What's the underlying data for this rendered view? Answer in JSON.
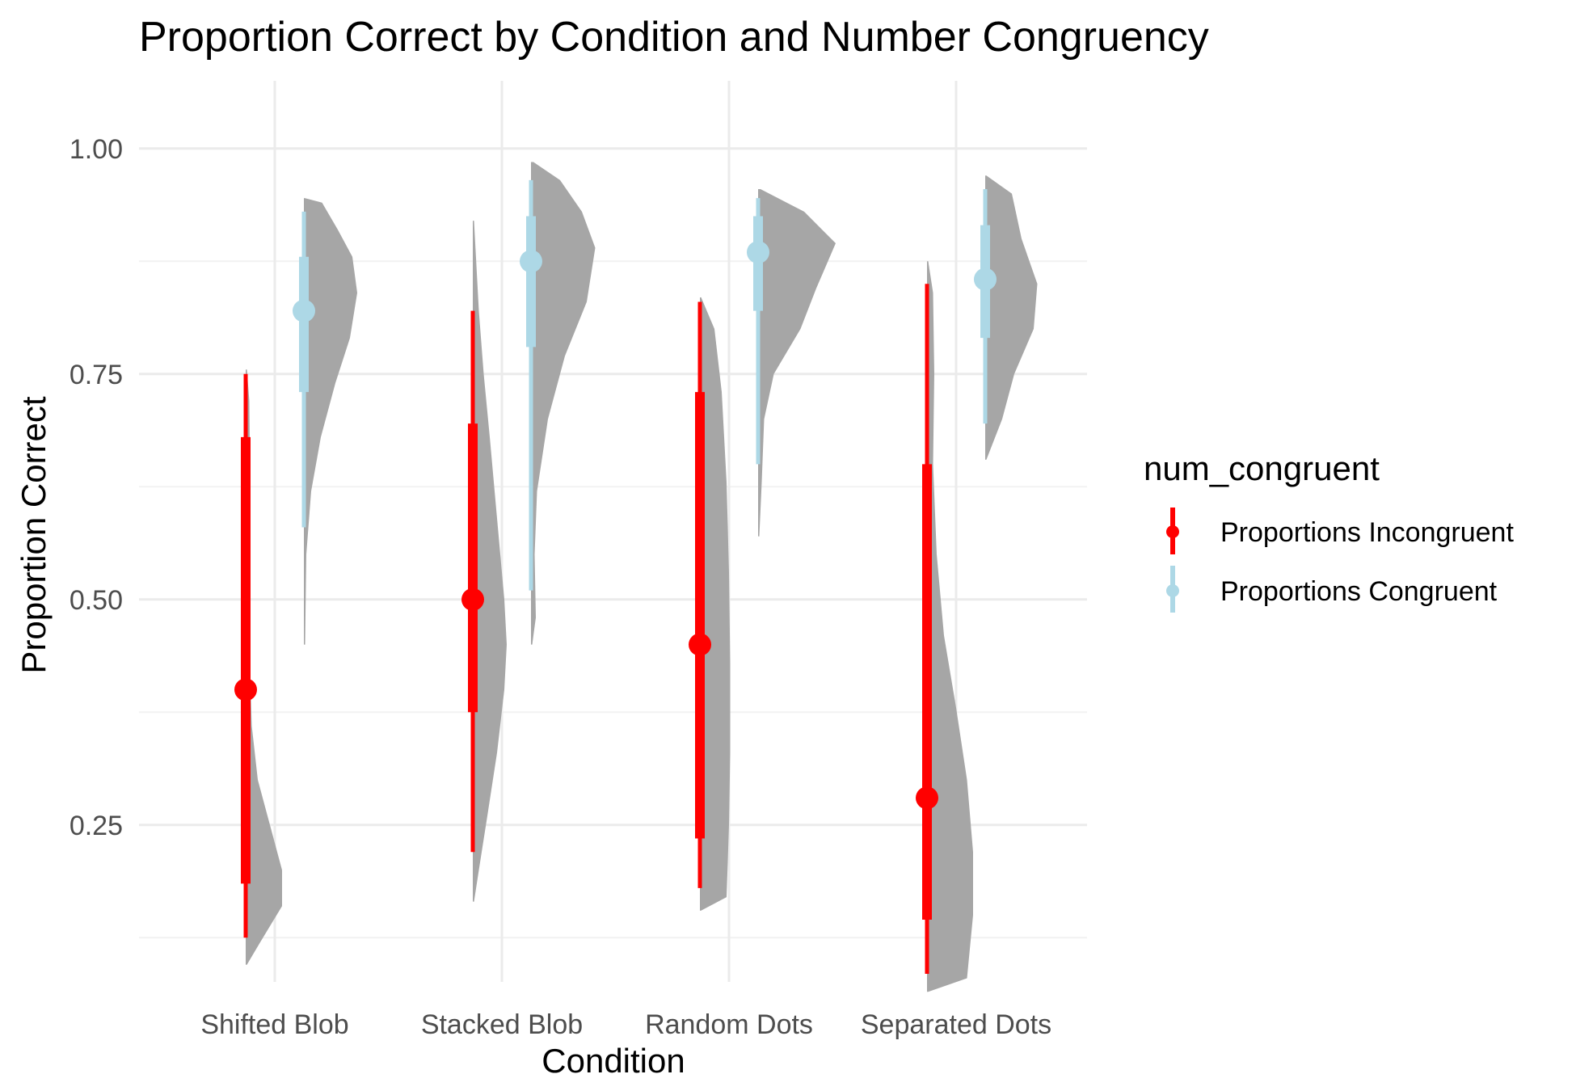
{
  "chart_data": {
    "type": "raincloud",
    "title": "Proportion Correct by Condition and Number Congruency",
    "xlabel": "Condition",
    "ylabel": "Proportion Correct",
    "ylim": [
      0.05,
      1.06
    ],
    "yticks": [
      0.25,
      0.5,
      0.75,
      1.0
    ],
    "ytick_labels": [
      "0.25",
      "0.50",
      "0.75",
      "1.00"
    ],
    "grid": true,
    "categories": [
      "Shifted Blob",
      "Stacked Blob",
      "Random Dots",
      "Separated Dots"
    ],
    "legend": {
      "title": "num_congruent",
      "placement": "right"
    },
    "density_color": "#a6a6a6",
    "series": [
      {
        "name": "Proportions Incongruent",
        "color": "#ff0000",
        "points": [
          {
            "category": "Shifted Blob",
            "median": 0.4,
            "q_inner": [
              0.185,
              0.68
            ],
            "q_outer": [
              0.125,
              0.75
            ]
          },
          {
            "category": "Stacked Blob",
            "median": 0.5,
            "q_inner": [
              0.375,
              0.695
            ],
            "q_outer": [
              0.22,
              0.82
            ]
          },
          {
            "category": "Random Dots",
            "median": 0.45,
            "q_inner": [
              0.235,
              0.73
            ],
            "q_outer": [
              0.18,
              0.83
            ]
          },
          {
            "category": "Separated Dots",
            "median": 0.28,
            "q_inner": [
              0.145,
              0.65
            ],
            "q_outer": [
              0.085,
              0.85
            ]
          }
        ],
        "densities": [
          {
            "category": "Shifted Blob",
            "profile": [
              [
                0.095,
                0.01
              ],
              [
                0.12,
                0.12
              ],
              [
                0.16,
                0.3
              ],
              [
                0.2,
                0.3
              ],
              [
                0.25,
                0.2
              ],
              [
                0.3,
                0.1
              ],
              [
                0.36,
                0.05
              ],
              [
                0.45,
                0.03
              ],
              [
                0.55,
                0.03
              ],
              [
                0.65,
                0.035
              ],
              [
                0.72,
                0.03
              ],
              [
                0.755,
                0.01
              ]
            ]
          },
          {
            "category": "Stacked Blob",
            "profile": [
              [
                0.165,
                0.01
              ],
              [
                0.2,
                0.05
              ],
              [
                0.26,
                0.12
              ],
              [
                0.33,
                0.2
              ],
              [
                0.4,
                0.26
              ],
              [
                0.45,
                0.28
              ],
              [
                0.5,
                0.26
              ],
              [
                0.56,
                0.22
              ],
              [
                0.62,
                0.18
              ],
              [
                0.68,
                0.14
              ],
              [
                0.75,
                0.09
              ],
              [
                0.82,
                0.05
              ],
              [
                0.92,
                0.01
              ]
            ]
          },
          {
            "category": "Random Dots",
            "profile": [
              [
                0.155,
                0.01
              ],
              [
                0.17,
                0.22
              ],
              [
                0.25,
                0.24
              ],
              [
                0.33,
                0.25
              ],
              [
                0.43,
                0.25
              ],
              [
                0.53,
                0.24
              ],
              [
                0.63,
                0.22
              ],
              [
                0.73,
                0.18
              ],
              [
                0.8,
                0.12
              ],
              [
                0.835,
                0.01
              ]
            ]
          },
          {
            "category": "Separated Dots",
            "profile": [
              [
                0.065,
                0.01
              ],
              [
                0.08,
                0.33
              ],
              [
                0.15,
                0.38
              ],
              [
                0.22,
                0.38
              ],
              [
                0.3,
                0.33
              ],
              [
                0.38,
                0.24
              ],
              [
                0.46,
                0.14
              ],
              [
                0.55,
                0.08
              ],
              [
                0.65,
                0.05
              ],
              [
                0.75,
                0.06
              ],
              [
                0.84,
                0.05
              ],
              [
                0.875,
                0.01
              ]
            ]
          }
        ]
      },
      {
        "name": "Proportions Congruent",
        "color": "#add8e6",
        "points": [
          {
            "category": "Shifted Blob",
            "median": 0.82,
            "q_inner": [
              0.73,
              0.88
            ],
            "q_outer": [
              0.58,
              0.93
            ]
          },
          {
            "category": "Stacked Blob",
            "median": 0.875,
            "q_inner": [
              0.78,
              0.925
            ],
            "q_outer": [
              0.51,
              0.965
            ]
          },
          {
            "category": "Random Dots",
            "median": 0.885,
            "q_inner": [
              0.82,
              0.925
            ],
            "q_outer": [
              0.65,
              0.945
            ]
          },
          {
            "category": "Separated Dots",
            "median": 0.855,
            "q_inner": [
              0.79,
              0.915
            ],
            "q_outer": [
              0.695,
              0.955
            ]
          }
        ],
        "densities": [
          {
            "category": "Shifted Blob",
            "profile": [
              [
                0.45,
                0.01
              ],
              [
                0.55,
                0.02
              ],
              [
                0.62,
                0.06
              ],
              [
                0.68,
                0.14
              ],
              [
                0.74,
                0.26
              ],
              [
                0.79,
                0.38
              ],
              [
                0.84,
                0.44
              ],
              [
                0.88,
                0.4
              ],
              [
                0.91,
                0.28
              ],
              [
                0.94,
                0.15
              ],
              [
                0.945,
                0.01
              ]
            ]
          },
          {
            "category": "Stacked Blob",
            "profile": [
              [
                0.45,
                0.01
              ],
              [
                0.48,
                0.04
              ],
              [
                0.55,
                0.03
              ],
              [
                0.62,
                0.05
              ],
              [
                0.7,
                0.14
              ],
              [
                0.77,
                0.28
              ],
              [
                0.83,
                0.46
              ],
              [
                0.89,
                0.53
              ],
              [
                0.93,
                0.42
              ],
              [
                0.965,
                0.24
              ],
              [
                0.985,
                0.02
              ]
            ]
          },
          {
            "category": "Random Dots",
            "profile": [
              [
                0.57,
                0.01
              ],
              [
                0.63,
                0.03
              ],
              [
                0.7,
                0.05
              ],
              [
                0.75,
                0.13
              ],
              [
                0.8,
                0.35
              ],
              [
                0.845,
                0.48
              ],
              [
                0.895,
                0.64
              ],
              [
                0.93,
                0.38
              ],
              [
                0.955,
                0.02
              ]
            ]
          },
          {
            "category": "Separated Dots",
            "profile": [
              [
                0.655,
                0.01
              ],
              [
                0.7,
                0.14
              ],
              [
                0.75,
                0.24
              ],
              [
                0.8,
                0.4
              ],
              [
                0.85,
                0.43
              ],
              [
                0.9,
                0.3
              ],
              [
                0.95,
                0.22
              ],
              [
                0.97,
                0.01
              ]
            ]
          }
        ]
      }
    ]
  }
}
